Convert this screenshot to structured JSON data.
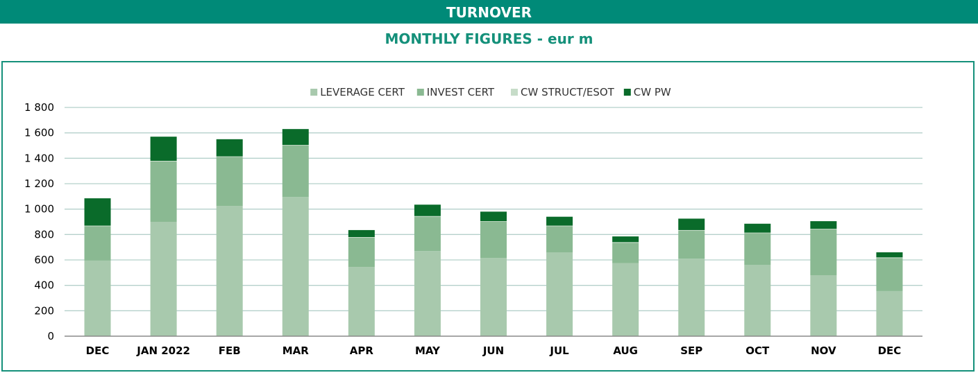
{
  "header": {
    "title": "TURNOVER",
    "subtitle": "MONTHLY FIGURES - eur m"
  },
  "colors": {
    "accent": "#008a78",
    "subtitle": "#14907a",
    "leverage": "#a8c9ad",
    "invest": "#8ab992",
    "struct": "#c6dcc8",
    "pw": "#0a6b2a",
    "grid": "#b5d0cb"
  },
  "chart_data": {
    "type": "bar",
    "stacked": true,
    "title": "",
    "xlabel": "",
    "ylabel": "",
    "ylim": [
      0,
      1800
    ],
    "yticks": [
      0,
      200,
      400,
      600,
      800,
      1000,
      1200,
      1400,
      1600,
      1800
    ],
    "ytick_labels": [
      "0",
      "200",
      "400",
      "600",
      "800",
      "1 000",
      "1 200",
      "1 400",
      "1 600",
      "1 800"
    ],
    "grid": true,
    "legend": "top-center",
    "categories": [
      "DEC",
      "JAN 2022",
      "FEB",
      "MAR",
      "APR",
      "MAY",
      "JUN",
      "JUL",
      "AUG",
      "SEP",
      "OCT",
      "NOV",
      "DEC"
    ],
    "series": [
      {
        "name": "LEVERAGE CERT",
        "color": "#a8c9ad",
        "values": [
          595,
          900,
          1025,
          1095,
          545,
          670,
          615,
          660,
          575,
          610,
          560,
          480,
          355
        ]
      },
      {
        "name": "INVEST CERT",
        "color": "#8ab992",
        "values": [
          270,
          475,
          385,
          405,
          230,
          270,
          285,
          205,
          160,
          220,
          250,
          360,
          260
        ]
      },
      {
        "name": "CW STRUCT/ESOT",
        "color": "#c6dcc8",
        "values": [
          5,
          5,
          5,
          5,
          5,
          5,
          5,
          5,
          5,
          5,
          5,
          5,
          5
        ]
      },
      {
        "name": "CW PW",
        "color": "#0a6b2a",
        "values": [
          215,
          190,
          135,
          125,
          55,
          90,
          75,
          70,
          45,
          90,
          70,
          60,
          40
        ]
      }
    ]
  }
}
